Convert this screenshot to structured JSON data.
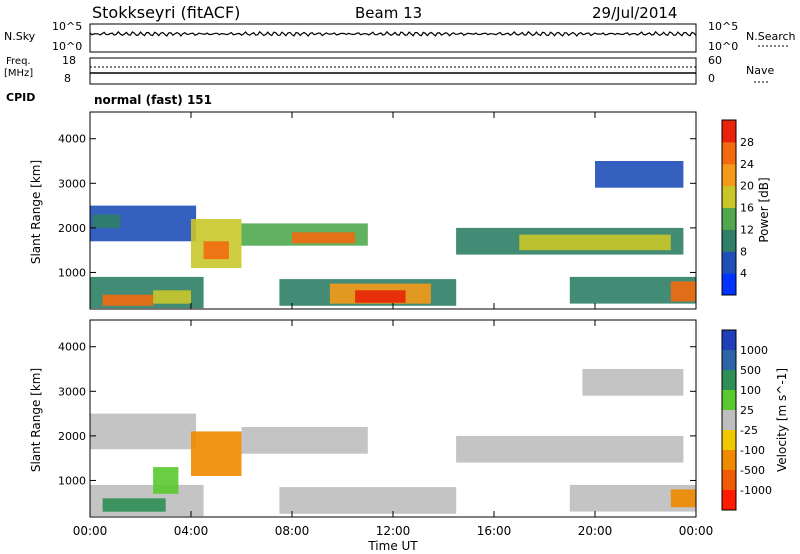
{
  "header": {
    "station": "Stokkseyri (fitACF)",
    "beam": "Beam 13",
    "date": "29/Jul/2014"
  },
  "strip_panels": {
    "nsky_label": "N.Sky",
    "nsearch_label": "N.Search",
    "nsky_top": "10^5",
    "nsky_bottom": "10^0",
    "nsearch_top": "10^5",
    "nsearch_bottom": "10^0",
    "freq_label": "Freq.",
    "freq_unit": "[MHz]",
    "freq_top": "18",
    "freq_bottom": "8",
    "nave_label": "Nave",
    "nave_top": "60",
    "nave_bottom": "0",
    "cpid_label": "CPID",
    "cpid_value": "normal (fast) 151"
  },
  "x_axis": {
    "label": "Time UT",
    "ticks": [
      "00:00",
      "04:00",
      "08:00",
      "12:00",
      "16:00",
      "20:00",
      "00:00"
    ]
  },
  "colors": {
    "power_scale": [
      "#0033ff",
      "#1f4fb8",
      "#2e7f66",
      "#4fa84f",
      "#c9c62a",
      "#f39a1a",
      "#f26a10",
      "#e8230a"
    ],
    "velocity_scale": [
      "#1f3fb8",
      "#2d63a8",
      "#2f8e55",
      "#59c92e",
      "#bebebe",
      "#f0c800",
      "#f08a00",
      "#f05a00",
      "#ff1a00"
    ]
  },
  "chart_data": [
    {
      "type": "heatmap",
      "title": "Power",
      "xlabel": "Time UT",
      "ylabel": "Slant Range [km]",
      "xlim": [
        0,
        24
      ],
      "ylim": [
        180,
        4600
      ],
      "y_ticks": [
        1000,
        2000,
        3000,
        4000
      ],
      "colorbar_label": "Power [dB]",
      "colorbar_ticks": [
        "4",
        "8",
        "12",
        "16",
        "20",
        "24",
        "28"
      ],
      "grid": false,
      "regions": [
        {
          "t0": 0.0,
          "t1": 4.2,
          "r0": 1700,
          "r1": 2500,
          "level": 1
        },
        {
          "t0": 0.1,
          "t1": 1.2,
          "r0": 2000,
          "r1": 2300,
          "level": 2
        },
        {
          "t0": 0.0,
          "t1": 4.5,
          "r0": 200,
          "r1": 900,
          "level": 2
        },
        {
          "t0": 0.5,
          "t1": 2.5,
          "r0": 250,
          "r1": 500,
          "level": 6
        },
        {
          "t0": 2.5,
          "t1": 4.0,
          "r0": 300,
          "r1": 600,
          "level": 4
        },
        {
          "t0": 4.0,
          "t1": 6.0,
          "r0": 1100,
          "r1": 2200,
          "level": 4
        },
        {
          "t0": 4.5,
          "t1": 5.5,
          "r0": 1300,
          "r1": 1700,
          "level": 6
        },
        {
          "t0": 6.0,
          "t1": 11.0,
          "r0": 1600,
          "r1": 2100,
          "level": 3
        },
        {
          "t0": 8.0,
          "t1": 10.5,
          "r0": 1650,
          "r1": 1900,
          "level": 6
        },
        {
          "t0": 7.5,
          "t1": 14.5,
          "r0": 250,
          "r1": 850,
          "level": 2
        },
        {
          "t0": 9.5,
          "t1": 13.5,
          "r0": 300,
          "r1": 750,
          "level": 5
        },
        {
          "t0": 10.5,
          "t1": 12.5,
          "r0": 320,
          "r1": 600,
          "level": 7
        },
        {
          "t0": 14.5,
          "t1": 23.5,
          "r0": 1400,
          "r1": 2000,
          "level": 2
        },
        {
          "t0": 17.0,
          "t1": 23.0,
          "r0": 1500,
          "r1": 1850,
          "level": 4
        },
        {
          "t0": 20.0,
          "t1": 23.5,
          "r0": 2900,
          "r1": 3500,
          "level": 1
        },
        {
          "t0": 19.0,
          "t1": 24.0,
          "r0": 300,
          "r1": 900,
          "level": 2
        },
        {
          "t0": 23.0,
          "t1": 24.0,
          "r0": 350,
          "r1": 800,
          "level": 6
        }
      ]
    },
    {
      "type": "heatmap",
      "title": "Velocity",
      "xlabel": "Time UT",
      "ylabel": "Slant Range [km]",
      "xlim": [
        0,
        24
      ],
      "ylim": [
        180,
        4600
      ],
      "y_ticks": [
        1000,
        2000,
        3000,
        4000
      ],
      "colorbar_label": "Velocity [m s^-1]",
      "colorbar_ticks": [
        "1000",
        "500",
        "100",
        "25",
        "-25",
        "-100",
        "-500",
        "-1000"
      ],
      "grid": false,
      "regions": [
        {
          "t0": 0.0,
          "t1": 4.2,
          "r0": 1700,
          "r1": 2500,
          "level": 4
        },
        {
          "t0": 0.0,
          "t1": 4.5,
          "r0": 200,
          "r1": 900,
          "level": 4
        },
        {
          "t0": 0.5,
          "t1": 3.0,
          "r0": 300,
          "r1": 600,
          "level": 2
        },
        {
          "t0": 2.5,
          "t1": 3.5,
          "r0": 700,
          "r1": 1300,
          "level": 3
        },
        {
          "t0": 4.0,
          "t1": 6.0,
          "r0": 1100,
          "r1": 2100,
          "level": 6
        },
        {
          "t0": 6.0,
          "t1": 11.0,
          "r0": 1600,
          "r1": 2200,
          "level": 4
        },
        {
          "t0": 7.5,
          "t1": 14.5,
          "r0": 250,
          "r1": 850,
          "level": 4
        },
        {
          "t0": 14.5,
          "t1": 23.5,
          "r0": 1400,
          "r1": 2000,
          "level": 4
        },
        {
          "t0": 19.5,
          "t1": 23.5,
          "r0": 2900,
          "r1": 3500,
          "level": 4
        },
        {
          "t0": 19.0,
          "t1": 24.0,
          "r0": 300,
          "r1": 900,
          "level": 4
        },
        {
          "t0": 23.0,
          "t1": 24.0,
          "r0": 400,
          "r1": 800,
          "level": 6
        }
      ]
    }
  ]
}
